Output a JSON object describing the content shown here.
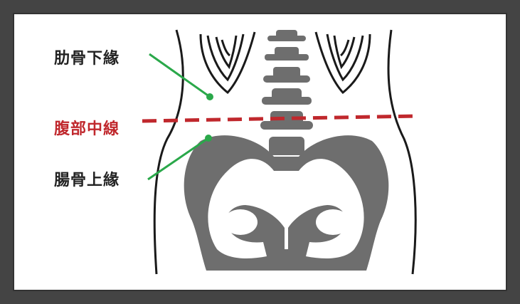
{
  "labels": {
    "rib_lower_margin": "肋骨下緣",
    "abdomen_midline": "腹部中線",
    "iliac_crest": "腸骨上緣"
  },
  "colors": {
    "frame": "#444444",
    "bone": "#6e6e6e",
    "outline": "#1a1a1a",
    "pointer": "#2aa84a",
    "midline": "#c0282d"
  }
}
